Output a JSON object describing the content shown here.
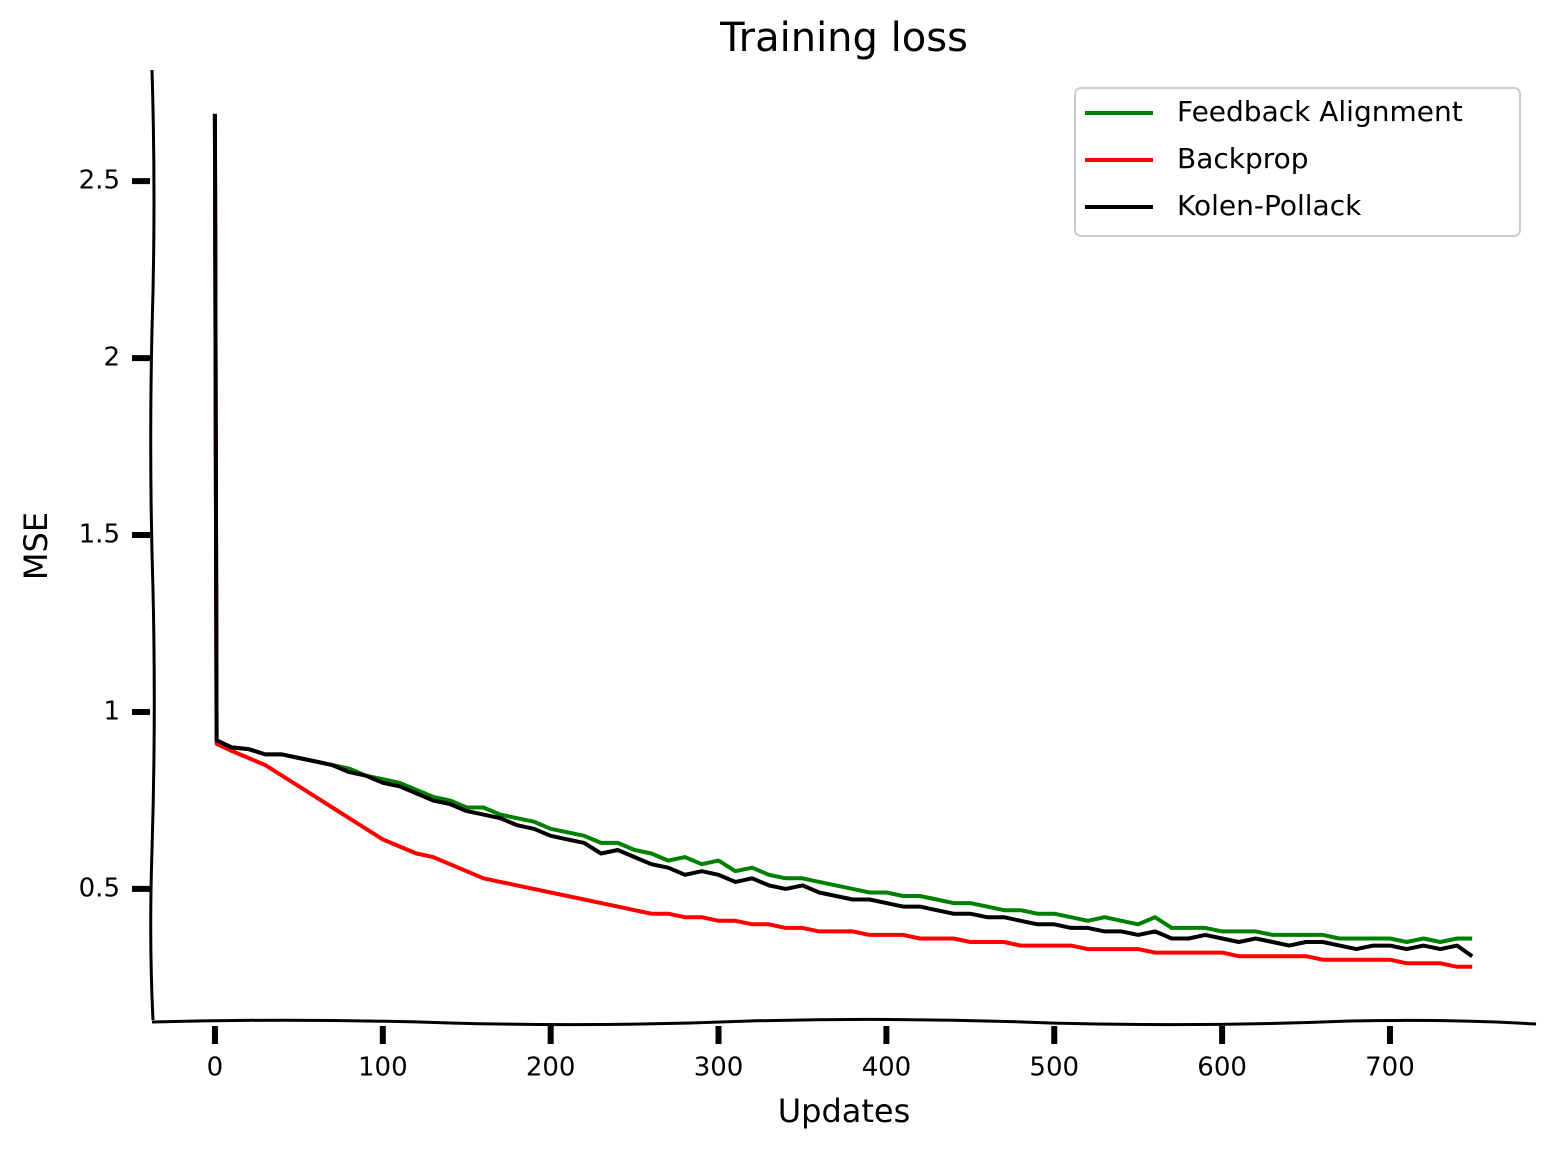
{
  "chart_data": {
    "type": "line",
    "title": "Training loss",
    "x_label": "Updates",
    "y_label": "MSE",
    "x": [
      0,
      1,
      10,
      20,
      30,
      40,
      50,
      60,
      70,
      80,
      90,
      100,
      110,
      120,
      130,
      140,
      150,
      160,
      170,
      180,
      190,
      200,
      210,
      220,
      230,
      240,
      250,
      260,
      270,
      280,
      290,
      300,
      310,
      320,
      330,
      340,
      350,
      360,
      370,
      380,
      390,
      400,
      410,
      420,
      430,
      440,
      450,
      460,
      470,
      480,
      490,
      500,
      510,
      520,
      530,
      540,
      550,
      560,
      570,
      580,
      590,
      600,
      610,
      620,
      630,
      640,
      650,
      660,
      670,
      680,
      690,
      700,
      710,
      720,
      730,
      740,
      749
    ],
    "series": [
      {
        "name": "Feedback Alignment",
        "color": "#008000",
        "values": [
          2.69,
          0.92,
          0.9,
          0.895,
          0.88,
          0.88,
          0.87,
          0.86,
          0.85,
          0.84,
          0.82,
          0.81,
          0.8,
          0.78,
          0.76,
          0.75,
          0.73,
          0.73,
          0.71,
          0.7,
          0.69,
          0.67,
          0.66,
          0.65,
          0.63,
          0.63,
          0.61,
          0.6,
          0.58,
          0.59,
          0.57,
          0.58,
          0.55,
          0.56,
          0.54,
          0.53,
          0.53,
          0.52,
          0.51,
          0.5,
          0.49,
          0.49,
          0.48,
          0.48,
          0.47,
          0.46,
          0.46,
          0.45,
          0.44,
          0.44,
          0.43,
          0.43,
          0.42,
          0.41,
          0.42,
          0.41,
          0.4,
          0.42,
          0.39,
          0.39,
          0.39,
          0.38,
          0.38,
          0.38,
          0.37,
          0.37,
          0.37,
          0.37,
          0.36,
          0.36,
          0.36,
          0.36,
          0.35,
          0.36,
          0.35,
          0.36,
          0.36
        ]
      },
      {
        "name": "Backprop",
        "color": "#ff0000",
        "values": [
          2.69,
          0.91,
          0.89,
          0.87,
          0.85,
          0.82,
          0.79,
          0.76,
          0.73,
          0.7,
          0.67,
          0.64,
          0.62,
          0.6,
          0.59,
          0.57,
          0.55,
          0.53,
          0.52,
          0.51,
          0.5,
          0.49,
          0.48,
          0.47,
          0.46,
          0.45,
          0.44,
          0.43,
          0.43,
          0.42,
          0.42,
          0.41,
          0.41,
          0.4,
          0.4,
          0.39,
          0.39,
          0.38,
          0.38,
          0.38,
          0.37,
          0.37,
          0.37,
          0.36,
          0.36,
          0.36,
          0.35,
          0.35,
          0.35,
          0.34,
          0.34,
          0.34,
          0.34,
          0.33,
          0.33,
          0.33,
          0.33,
          0.32,
          0.32,
          0.32,
          0.32,
          0.32,
          0.31,
          0.31,
          0.31,
          0.31,
          0.31,
          0.3,
          0.3,
          0.3,
          0.3,
          0.3,
          0.29,
          0.29,
          0.29,
          0.28,
          0.28
        ]
      },
      {
        "name": "Kolen-Pollack",
        "color": "#000000",
        "values": [
          2.69,
          0.92,
          0.9,
          0.895,
          0.88,
          0.88,
          0.87,
          0.86,
          0.85,
          0.83,
          0.82,
          0.8,
          0.79,
          0.77,
          0.75,
          0.74,
          0.72,
          0.71,
          0.7,
          0.68,
          0.67,
          0.65,
          0.64,
          0.63,
          0.6,
          0.61,
          0.59,
          0.57,
          0.56,
          0.54,
          0.55,
          0.54,
          0.52,
          0.53,
          0.51,
          0.5,
          0.51,
          0.49,
          0.48,
          0.47,
          0.47,
          0.46,
          0.45,
          0.45,
          0.44,
          0.43,
          0.43,
          0.42,
          0.42,
          0.41,
          0.4,
          0.4,
          0.39,
          0.39,
          0.38,
          0.38,
          0.37,
          0.38,
          0.36,
          0.36,
          0.37,
          0.36,
          0.35,
          0.36,
          0.35,
          0.34,
          0.35,
          0.35,
          0.34,
          0.33,
          0.34,
          0.34,
          0.33,
          0.34,
          0.33,
          0.34,
          0.31
        ]
      }
    ],
    "xlim": [
      -37.5,
      787
    ],
    "ylim": [
      0.124,
      2.814
    ],
    "xticks": [
      0,
      100,
      200,
      300,
      400,
      500,
      600,
      700
    ],
    "yticks": [
      0.5,
      1.0,
      1.5,
      2.0,
      2.5
    ],
    "legend": "upper right"
  }
}
